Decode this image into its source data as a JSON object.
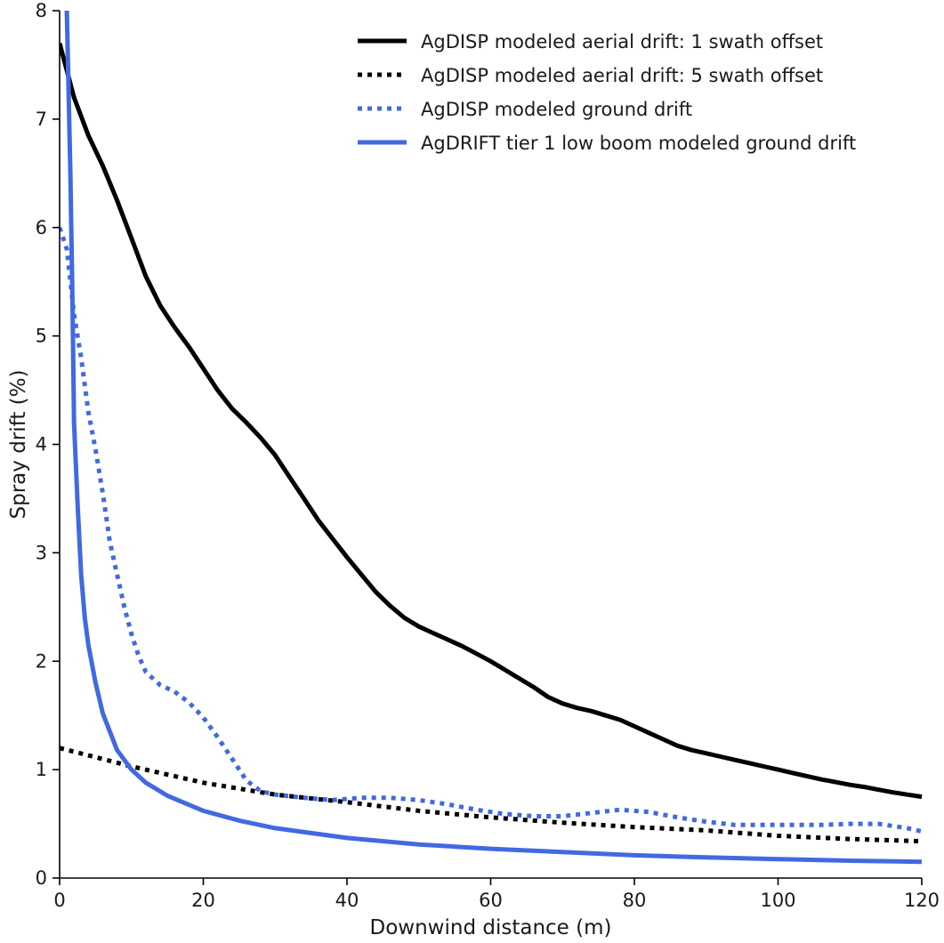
{
  "chart_data": {
    "type": "line",
    "title": "",
    "xlabel": "Downwind distance (m)",
    "ylabel": "Spray drift (%)",
    "xlim": [
      0,
      120
    ],
    "ylim": [
      0,
      8
    ],
    "xticks": [
      0,
      20,
      40,
      60,
      80,
      100,
      120
    ],
    "yticks": [
      0,
      1,
      2,
      3,
      4,
      5,
      6,
      7,
      8
    ],
    "grid": false,
    "legend_position": "top-right",
    "series": [
      {
        "name": "AgDISP modeled aerial drift: 1 swath offset",
        "color": "#000000",
        "style": "solid",
        "x": [
          0,
          2,
          4,
          6,
          8,
          10,
          12,
          14,
          16,
          18,
          20,
          22,
          24,
          26,
          28,
          30,
          32,
          34,
          36,
          38,
          40,
          42,
          44,
          46,
          48,
          50,
          52,
          54,
          56,
          58,
          60,
          62,
          64,
          66,
          68,
          70,
          72,
          74,
          76,
          78,
          80,
          82,
          84,
          86,
          88,
          90,
          92,
          94,
          96,
          98,
          100,
          102,
          104,
          106,
          108,
          110,
          112,
          114,
          116,
          118,
          120
        ],
        "y": [
          7.7,
          7.2,
          6.85,
          6.57,
          6.25,
          5.9,
          5.55,
          5.28,
          5.08,
          4.9,
          4.7,
          4.5,
          4.33,
          4.2,
          4.06,
          3.9,
          3.7,
          3.5,
          3.3,
          3.13,
          2.96,
          2.8,
          2.64,
          2.51,
          2.4,
          2.32,
          2.26,
          2.2,
          2.14,
          2.07,
          2.0,
          1.92,
          1.84,
          1.76,
          1.67,
          1.61,
          1.57,
          1.54,
          1.5,
          1.46,
          1.4,
          1.34,
          1.28,
          1.22,
          1.18,
          1.15,
          1.12,
          1.09,
          1.06,
          1.03,
          1.0,
          0.97,
          0.94,
          0.91,
          0.885,
          0.86,
          0.84,
          0.815,
          0.79,
          0.77,
          0.75
        ]
      },
      {
        "name": "AgDISP modeled aerial drift: 5 swath offset",
        "color": "#000000",
        "style": "dotted",
        "x": [
          0,
          10,
          20,
          30,
          40,
          50,
          60,
          70,
          80,
          90,
          100,
          110,
          120
        ],
        "y": [
          1.2,
          1.03,
          0.88,
          0.77,
          0.7,
          0.62,
          0.56,
          0.51,
          0.47,
          0.44,
          0.39,
          0.36,
          0.34
        ]
      },
      {
        "name": "AgDISP modeled ground drift",
        "color": "#4169E1",
        "style": "dotted",
        "x": [
          0,
          1,
          2,
          3,
          4,
          5,
          6,
          7,
          8,
          9,
          10,
          11,
          12,
          14,
          16,
          18,
          20,
          22,
          24,
          26,
          28,
          30,
          34,
          38,
          42,
          46,
          50,
          54,
          58,
          62,
          66,
          70,
          74,
          78,
          82,
          86,
          90,
          94,
          98,
          102,
          106,
          110,
          114,
          118,
          120
        ],
        "y": [
          6.0,
          5.8,
          5.2,
          4.8,
          4.3,
          3.95,
          3.55,
          3.1,
          2.8,
          2.5,
          2.25,
          2.05,
          1.9,
          1.78,
          1.72,
          1.62,
          1.48,
          1.3,
          1.1,
          0.9,
          0.8,
          0.77,
          0.74,
          0.72,
          0.74,
          0.74,
          0.72,
          0.68,
          0.63,
          0.59,
          0.57,
          0.57,
          0.6,
          0.63,
          0.61,
          0.56,
          0.52,
          0.49,
          0.49,
          0.49,
          0.49,
          0.5,
          0.5,
          0.46,
          0.43
        ]
      },
      {
        "name": "AgDRIFT tier 1 low boom modeled ground drift",
        "color": "#4169E1",
        "style": "solid",
        "x": [
          1.0,
          1.2,
          1.5,
          1.8,
          2.0,
          2.5,
          3.0,
          3.5,
          4.0,
          5.0,
          6.0,
          8.0,
          10.0,
          12.0,
          15.0,
          20.0,
          25.0,
          30.0,
          40.0,
          50.0,
          60.0,
          70.0,
          80.0,
          90.0,
          100.0,
          110.0,
          120.0
        ],
        "y": [
          8.0,
          7.4,
          6.5,
          5.3,
          4.2,
          3.45,
          2.8,
          2.4,
          2.15,
          1.8,
          1.52,
          1.18,
          1.0,
          0.88,
          0.76,
          0.62,
          0.53,
          0.46,
          0.37,
          0.31,
          0.27,
          0.24,
          0.21,
          0.19,
          0.175,
          0.16,
          0.15
        ]
      }
    ]
  }
}
